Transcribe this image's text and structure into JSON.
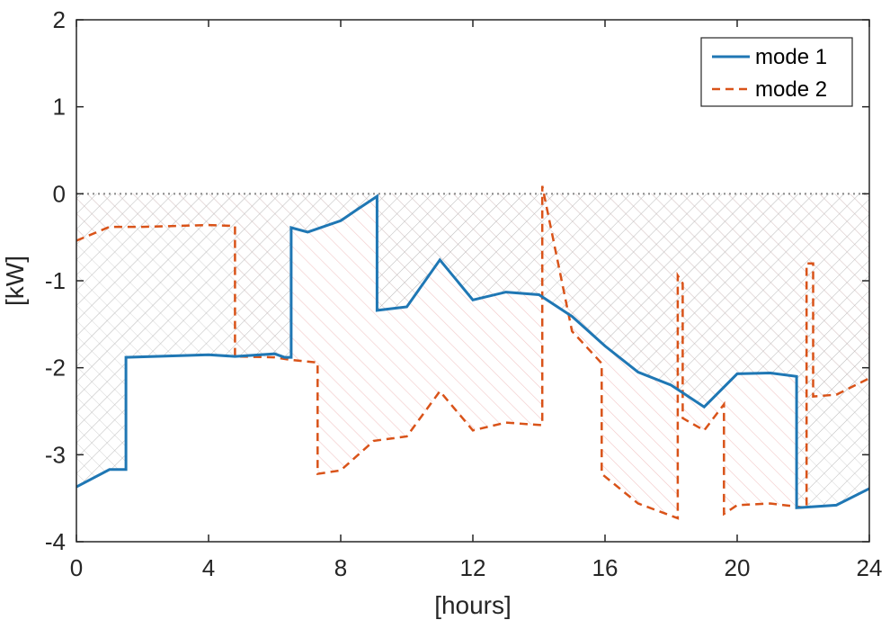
{
  "chart_data": {
    "type": "line",
    "xlabel": "[hours]",
    "ylabel": "[kW]",
    "xlim": [
      0,
      24
    ],
    "ylim": [
      -4,
      2
    ],
    "xticks": [
      0,
      4,
      8,
      12,
      16,
      20,
      24
    ],
    "yticks": [
      -4,
      -3,
      -2,
      -1,
      0,
      1,
      2
    ],
    "grid": false,
    "legend_position": "top-right",
    "reference_line": {
      "y": 0,
      "style": "dotted",
      "color": "#888888"
    },
    "shading": "hatched region between the series and y = 0",
    "series": [
      {
        "name": "mode 1",
        "color": "#1f77b4",
        "style": "solid",
        "x": [
          0,
          1,
          1.5,
          1.5,
          4,
          4.8,
          6,
          6.3,
          6.5,
          6.5,
          7,
          8,
          8.5,
          9.1,
          9.1,
          10,
          11,
          12,
          13,
          14,
          15,
          16,
          17,
          18,
          19,
          20,
          21,
          21.8,
          21.8,
          23,
          24
        ],
        "y": [
          -3.37,
          -3.17,
          -3.17,
          -1.88,
          -1.85,
          -1.87,
          -1.84,
          -1.88,
          -1.88,
          -0.39,
          -0.44,
          -0.31,
          -0.18,
          -0.03,
          -1.34,
          -1.3,
          -0.76,
          -1.22,
          -1.13,
          -1.16,
          -1.41,
          -1.75,
          -2.05,
          -2.2,
          -2.45,
          -2.07,
          -2.06,
          -2.1,
          -3.61,
          -3.58,
          -3.39
        ]
      },
      {
        "name": "mode 2",
        "color": "#d95319",
        "style": "dashed",
        "x": [
          0,
          1,
          2,
          3,
          4,
          4.8,
          4.8,
          6,
          6.5,
          7.3,
          7.3,
          8,
          9,
          10,
          11,
          12,
          13,
          14.1,
          14.1,
          15,
          15.9,
          15.9,
          17,
          18.2,
          18.2,
          18.35,
          18.35,
          19,
          19.6,
          19.6,
          20,
          21,
          22.1,
          22.1,
          22.3,
          22.3,
          23,
          24
        ],
        "y": [
          -0.54,
          -0.38,
          -0.38,
          -0.37,
          -0.36,
          -0.37,
          -1.87,
          -1.88,
          -1.91,
          -1.94,
          -3.22,
          -3.18,
          -2.84,
          -2.79,
          -2.27,
          -2.72,
          -2.63,
          -2.66,
          0.09,
          -1.58,
          -1.95,
          -3.22,
          -3.56,
          -3.73,
          -0.94,
          -1.03,
          -2.58,
          -2.72,
          -2.42,
          -3.68,
          -3.58,
          -3.56,
          -3.61,
          -0.8,
          -0.8,
          -2.33,
          -2.31,
          -2.12
        ]
      }
    ]
  }
}
